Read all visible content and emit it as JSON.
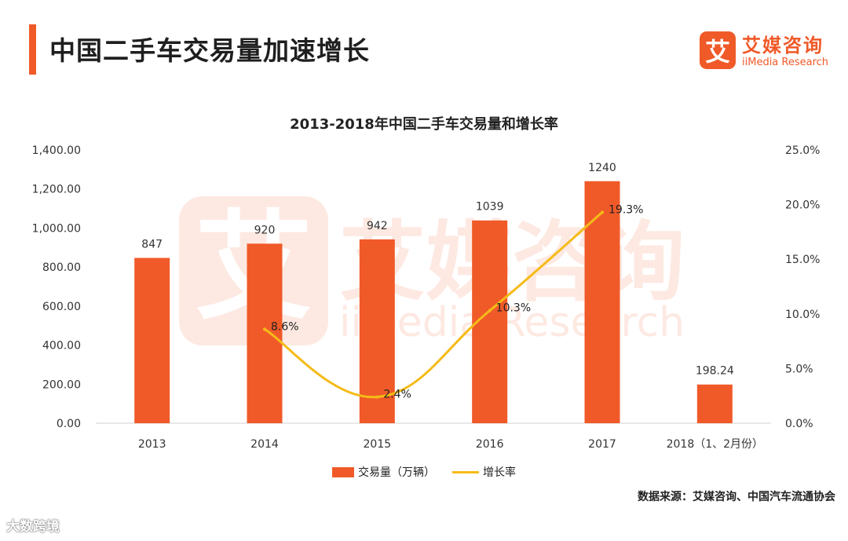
{
  "header": {
    "title": "中国二手车交易量加速增长"
  },
  "logo": {
    "mark": "艾",
    "name_cn": "艾媒咨询",
    "name_en": "iiMedia Research"
  },
  "watermark": {
    "mark": "艾",
    "name_cn": "艾媒咨询",
    "name_en": "iiMedia Research"
  },
  "chart_data": {
    "type": "bar",
    "title": "2013-2018年中国二手车交易量和增长率",
    "categories": [
      "2013",
      "2014",
      "2015",
      "2016",
      "2017",
      "2018（1、2月份）"
    ],
    "ylim": [
      0,
      1400
    ],
    "y_ticks": [
      "1,400.00",
      "1,200.00",
      "1,000.00",
      "800.00",
      "600.00",
      "400.00",
      "200.00",
      "0.00"
    ],
    "y2lim": [
      0,
      25
    ],
    "y2_ticks": [
      "25.0%",
      "20.0%",
      "15.0%",
      "10.0%",
      "5.0%",
      "0.0%"
    ],
    "series": [
      {
        "name": "交易量（万辆）",
        "kind": "bar",
        "color": "#f05a28",
        "values": [
          847,
          920,
          942,
          1039,
          1240,
          198.24
        ],
        "labels": [
          "847",
          "920",
          "942",
          "1039",
          "1240",
          "198.24"
        ]
      },
      {
        "name": "增长率",
        "kind": "line",
        "axis": "right",
        "color": "#f5bb18",
        "points": [
          {
            "category": "2014",
            "value": 8.6,
            "label": "8.6%"
          },
          {
            "category": "2015",
            "value": 2.4,
            "label": "2.4%"
          },
          {
            "category": "2016",
            "value": 10.3,
            "label": "10.3%"
          },
          {
            "category": "2017",
            "value": 19.3,
            "label": "19.3%"
          }
        ]
      }
    ]
  },
  "legend": {
    "bar_label": "交易量（万辆）",
    "line_label": "增长率"
  },
  "source": "数据来源：艾媒咨询、中国汽车流通协会",
  "brand_mark": "大数跨境"
}
